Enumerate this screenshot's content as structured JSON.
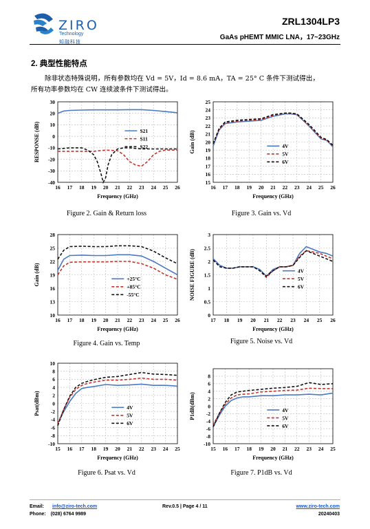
{
  "header": {
    "logo_text": "ZIRO",
    "logo_sub": "Technology",
    "logo_cn": "知融科技",
    "part_number": "ZRL1304LP3",
    "subtitle": "GaAs pHEMT MMIC LNA，17~23GHz"
  },
  "section": {
    "title": "2.  典型性能特点",
    "para1": "除非状态特殊说明，所有参数均在 Vd = 5V，Id = 8.6 mA，TA = 25° C 条件下测试得出，",
    "para2": "所有功率参数均在 CW 连续波条件下测试得出。"
  },
  "colors": {
    "blue": "#4a79c4",
    "red": "#c0342b",
    "black": "#111111",
    "grid": "#bbbbbb",
    "logo": "#1f5fa8"
  },
  "chart_data": [
    {
      "id": "fig2",
      "type": "line",
      "caption": "Figure 2. Gain & Return loss",
      "ylabel": "RESPONSE (dB)",
      "xlabel": "Frequency (GHz)",
      "xlim": [
        16,
        26
      ],
      "ylim": [
        -40,
        30
      ],
      "xticks": [
        16,
        17,
        18,
        19,
        20,
        21,
        22,
        23,
        24,
        25,
        26
      ],
      "yticks": [
        30,
        20,
        10,
        0,
        -10,
        -20,
        -30,
        -40
      ],
      "legend": "center-right",
      "series": [
        {
          "name": "S21",
          "color": "blue",
          "dash": "solid",
          "x": [
            16,
            16.5,
            17,
            18,
            19,
            20,
            21,
            22,
            23,
            24,
            25,
            26
          ],
          "y": [
            20,
            22,
            22.5,
            22.8,
            23,
            23,
            23,
            23.2,
            23.2,
            22.5,
            21.5,
            20.5
          ]
        },
        {
          "name": "S11",
          "color": "red",
          "dash": "dash",
          "x": [
            16,
            17,
            18,
            19,
            20,
            21,
            21.5,
            22,
            22.5,
            23,
            23.5,
            24,
            24.5,
            25,
            26
          ],
          "y": [
            -13,
            -13,
            -13,
            -13,
            -12,
            -12.5,
            -16,
            -22,
            -25,
            -26,
            -22,
            -16,
            -13,
            -12,
            -12
          ]
        },
        {
          "name": "S22",
          "color": "black",
          "dash": "dash",
          "x": [
            16,
            17,
            18,
            18.5,
            19,
            19.3,
            19.6,
            19.8,
            20,
            20.2,
            20.5,
            21,
            21.5,
            22,
            23,
            24,
            25,
            26
          ],
          "y": [
            -11,
            -10,
            -10,
            -12,
            -16,
            -22,
            -32,
            -40,
            -36,
            -25,
            -16,
            -11,
            -10,
            -10,
            -11,
            -11,
            -11,
            -11
          ]
        }
      ]
    },
    {
      "id": "fig3",
      "type": "line",
      "caption": "Figure 3. Gain vs. Vd",
      "ylabel": "Gain (dB)",
      "xlabel": "Frequency (GHz)",
      "xlim": [
        16,
        26
      ],
      "ylim": [
        15,
        25
      ],
      "xticks": [
        16,
        17,
        18,
        19,
        20,
        21,
        22,
        23,
        24,
        25,
        26
      ],
      "yticks": [
        25,
        24,
        23,
        22,
        21,
        20,
        19,
        18,
        17,
        16,
        15
      ],
      "legend": "lower-center",
      "series": [
        {
          "name": "4V",
          "color": "blue",
          "dash": "solid",
          "x": [
            16,
            16.5,
            17,
            17.5,
            18,
            19,
            20,
            21,
            22,
            22.5,
            23,
            24,
            24.5,
            25,
            25.5,
            26
          ],
          "y": [
            19.5,
            21.5,
            22.3,
            22.4,
            22.5,
            22.6,
            22.7,
            23.2,
            23.5,
            23.5,
            23.4,
            22,
            21.2,
            20.4,
            20.2,
            19.4
          ]
        },
        {
          "name": "5V",
          "color": "red",
          "dash": "dash",
          "x": [
            16,
            16.5,
            17,
            17.5,
            18,
            19,
            20,
            21,
            22,
            22.5,
            23,
            24,
            24.5,
            25,
            25.5,
            26
          ],
          "y": [
            19.7,
            21.6,
            22.4,
            22.5,
            22.6,
            22.7,
            22.8,
            23.3,
            23.6,
            23.6,
            23.4,
            22.1,
            21.3,
            20.5,
            20.2,
            19.5
          ]
        },
        {
          "name": "6V",
          "color": "black",
          "dash": "dash",
          "x": [
            16,
            16.5,
            17,
            17.5,
            18,
            19,
            20,
            21,
            22,
            22.5,
            23,
            24,
            24.5,
            25,
            25.5,
            26
          ],
          "y": [
            19.8,
            21.7,
            22.5,
            22.6,
            22.7,
            22.8,
            22.9,
            23.4,
            23.6,
            23.6,
            23.5,
            22.2,
            21.4,
            20.6,
            20.3,
            19.6
          ]
        }
      ]
    },
    {
      "id": "fig4",
      "type": "line",
      "caption": "Figure 4. Gain vs. Temp",
      "ylabel": "Gain (dB)",
      "xlabel": "Frequency (GHz)",
      "xlim": [
        16,
        26
      ],
      "ylim": [
        10,
        28
      ],
      "xticks": [
        16,
        17,
        18,
        19,
        20,
        21,
        22,
        23,
        24,
        25,
        26
      ],
      "yticks": [
        28,
        25,
        22,
        19,
        16,
        13,
        10
      ],
      "legend": "lower-center",
      "series": [
        {
          "name": "+25°C",
          "color": "blue",
          "dash": "solid",
          "x": [
            16,
            16.5,
            17,
            18,
            19,
            20,
            21,
            22,
            23,
            24,
            25,
            26
          ],
          "y": [
            20,
            22.5,
            23.3,
            23.4,
            23.3,
            23.3,
            23.5,
            23.5,
            23.2,
            22,
            20.5,
            19
          ]
        },
        {
          "name": "+85°C",
          "color": "red",
          "dash": "dash",
          "x": [
            16,
            16.5,
            17,
            18,
            19,
            20,
            21,
            22,
            23,
            24,
            25,
            26
          ],
          "y": [
            19,
            21,
            21.8,
            21.9,
            21.9,
            21.9,
            22,
            22,
            21.5,
            20.5,
            19,
            18
          ]
        },
        {
          "name": "-55°C",
          "color": "black",
          "dash": "dash",
          "x": [
            16,
            16.5,
            17,
            18,
            19,
            20,
            21,
            22,
            23,
            24,
            25,
            26
          ],
          "y": [
            22.5,
            24.5,
            25.3,
            25.4,
            25.3,
            25.3,
            25.5,
            25.5,
            25.3,
            24.3,
            22.8,
            21.5
          ]
        }
      ]
    },
    {
      "id": "fig5",
      "type": "line",
      "caption": "Figure 5. Noise vs. Vd",
      "ylabel": "NOISE FIGURE (dB)",
      "xlabel": "Frequency (GHz)",
      "xlim": [
        17,
        26
      ],
      "ylim": [
        0,
        3
      ],
      "xticks": [
        17,
        18,
        19,
        20,
        21,
        22,
        23,
        24,
        25,
        26
      ],
      "yticks": [
        3,
        2.5,
        2,
        1.5,
        1,
        0.5,
        0
      ],
      "legend": "center",
      "series": [
        {
          "name": "4V",
          "color": "blue",
          "dash": "solid",
          "x": [
            17,
            17.5,
            18,
            18.5,
            19,
            19.5,
            20,
            20.5,
            21,
            21.5,
            22,
            22.5,
            23,
            23.5,
            24,
            24.5,
            25,
            25.5,
            26
          ],
          "y": [
            2.1,
            1.85,
            1.75,
            1.75,
            1.8,
            1.8,
            1.8,
            1.7,
            1.45,
            1.7,
            1.8,
            1.8,
            1.85,
            2.3,
            2.55,
            2.45,
            2.35,
            2.3,
            2.2
          ]
        },
        {
          "name": "5V",
          "color": "red",
          "dash": "dash",
          "x": [
            17,
            17.5,
            18,
            18.5,
            19,
            19.5,
            20,
            20.5,
            21,
            21.5,
            22,
            22.5,
            23,
            23.5,
            24,
            24.5,
            25,
            25.5,
            26
          ],
          "y": [
            2.05,
            1.8,
            1.75,
            1.75,
            1.8,
            1.8,
            1.8,
            1.65,
            1.4,
            1.65,
            1.8,
            1.8,
            1.85,
            2.2,
            2.4,
            2.35,
            2.3,
            2.2,
            2.1
          ]
        },
        {
          "name": "6V",
          "color": "black",
          "dash": "dash",
          "x": [
            17,
            17.5,
            18,
            18.5,
            19,
            19.5,
            20,
            20.5,
            21,
            21.5,
            22,
            22.5,
            23,
            23.5,
            24,
            24.5,
            25,
            25.5,
            26
          ],
          "y": [
            2.05,
            1.8,
            1.75,
            1.75,
            1.8,
            1.8,
            1.8,
            1.65,
            1.45,
            1.65,
            1.8,
            1.8,
            1.85,
            2.15,
            2.4,
            2.3,
            2.2,
            2.1,
            2.0
          ]
        }
      ]
    },
    {
      "id": "fig6",
      "type": "line",
      "caption": "Figure 6. Psat vs. Vd",
      "ylabel": "Psat(dBm)",
      "xlabel": "Frequency (GHz)",
      "xlim": [
        15,
        25
      ],
      "ylim": [
        -10,
        10
      ],
      "xticks": [
        15,
        16,
        17,
        18,
        19,
        20,
        21,
        22,
        23,
        24,
        25
      ],
      "yticks": [
        10,
        8,
        6,
        4,
        2,
        0,
        -2,
        -4,
        -6,
        -8,
        -10
      ],
      "legend": "lower-center",
      "series": [
        {
          "name": "4V",
          "color": "blue",
          "dash": "solid",
          "x": [
            15,
            15.5,
            16,
            16.5,
            17,
            17.5,
            18,
            19,
            20,
            21,
            22,
            23,
            24,
            25
          ],
          "y": [
            -5,
            -2,
            0.5,
            2.5,
            3.7,
            4,
            4.2,
            4.7,
            4.5,
            4.6,
            4.8,
            4.5,
            4.5,
            4.3
          ]
        },
        {
          "name": "5V",
          "color": "red",
          "dash": "dash",
          "x": [
            15,
            15.5,
            16,
            16.5,
            17,
            17.5,
            18,
            19,
            20,
            21,
            22,
            23,
            24,
            25
          ],
          "y": [
            -5,
            -1.5,
            1.5,
            3.5,
            4.5,
            5,
            5.3,
            5.8,
            5.8,
            6,
            6.3,
            6,
            6,
            5.8
          ]
        },
        {
          "name": "6V",
          "color": "black",
          "dash": "dash",
          "x": [
            15,
            15.5,
            16,
            16.5,
            17,
            17.5,
            18,
            19,
            20,
            21,
            22,
            23,
            24,
            25
          ],
          "y": [
            -5.5,
            -1.5,
            1.8,
            4,
            5,
            5.5,
            5.9,
            6.5,
            6.7,
            7.2,
            7.7,
            7.3,
            7.2,
            7
          ]
        }
      ]
    },
    {
      "id": "fig7",
      "type": "line",
      "caption": "Figure 7. P1dB vs. Vd",
      "ylabel": "P1dB(dBm)",
      "xlabel": "Frequency (GHz)",
      "xlim": [
        15,
        25
      ],
      "ylim": [
        -10,
        10
      ],
      "xticks": [
        15,
        16,
        17,
        18,
        19,
        20,
        21,
        22,
        23,
        24,
        25
      ],
      "yticks": [
        8,
        6,
        4,
        2,
        0,
        -2,
        -4,
        -6,
        -8,
        -10
      ],
      "legend": "lower-center",
      "series": [
        {
          "name": "4V",
          "color": "blue",
          "dash": "solid",
          "x": [
            15,
            15.5,
            16,
            16.5,
            17,
            17.5,
            18,
            19,
            20,
            21,
            22,
            23,
            24,
            25
          ],
          "y": [
            -5.5,
            -2.5,
            0,
            1.5,
            2.2,
            2.5,
            2.5,
            2.8,
            2.8,
            3,
            3,
            3.2,
            3,
            3.5
          ]
        },
        {
          "name": "5V",
          "color": "red",
          "dash": "dash",
          "x": [
            15,
            15.5,
            16,
            16.5,
            17,
            17.5,
            18,
            19,
            20,
            21,
            22,
            23,
            24,
            25
          ],
          "y": [
            -5,
            -2,
            0.5,
            2.2,
            3,
            3.2,
            3.3,
            3.8,
            4,
            4.2,
            4.3,
            4.8,
            4.7,
            4.7
          ]
        },
        {
          "name": "6V",
          "color": "black",
          "dash": "dash",
          "x": [
            15,
            15.5,
            16,
            16.5,
            17,
            17.5,
            18,
            19,
            20,
            21,
            22,
            23,
            24,
            25
          ],
          "y": [
            -5.5,
            -2,
            1,
            3,
            3.8,
            4,
            4.2,
            4.5,
            4.8,
            5,
            5.3,
            6.3,
            5.8,
            6
          ]
        }
      ]
    }
  ],
  "footer": {
    "email_label": "Email:",
    "email": "info@ziro-tech.com",
    "phone_label": "Phone:",
    "phone": "(028) 6764 9989",
    "page": "Rev.0.5 | Page 4 / 11",
    "website": "www.ziro-tech.com",
    "date": "20240403"
  }
}
